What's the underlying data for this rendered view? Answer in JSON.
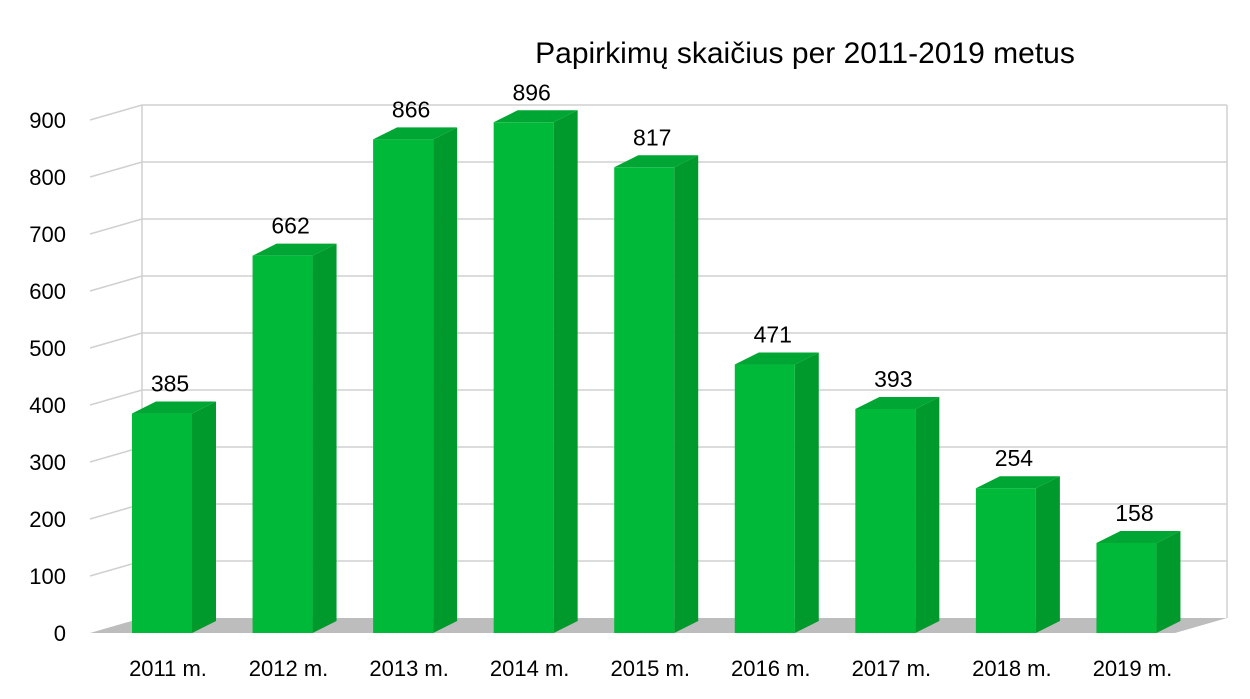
{
  "chart_data": {
    "type": "bar",
    "title": "Papirkimų skaičius per 2011-2019 metus",
    "xlabel": "",
    "ylabel": "",
    "categories": [
      "2011 m.",
      "2012 m.",
      "2013 m.",
      "2014 m.",
      "2015 m.",
      "2016 m.",
      "2017 m.",
      "2018 m.",
      "2019 m."
    ],
    "values": [
      385,
      662,
      866,
      896,
      817,
      471,
      393,
      254,
      158
    ],
    "value_labels": [
      "385",
      "662",
      "866",
      "896",
      "817",
      "471",
      "393",
      "254",
      "158"
    ],
    "yticks": [
      "0",
      "100",
      "200",
      "300",
      "400",
      "500",
      "600",
      "700",
      "800",
      "900"
    ],
    "ylim": [
      0,
      900
    ],
    "grid": true,
    "legend": "none",
    "colors": {
      "bar_front": "#00b938",
      "bar_side": "#009a2c",
      "bar_top": "#00a633",
      "floor": "#bdbdbd",
      "grid": "#d0d0d0"
    }
  }
}
